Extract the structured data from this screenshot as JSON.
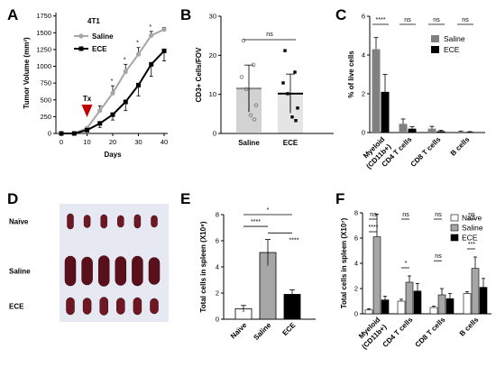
{
  "panels": {
    "A": "A",
    "B": "B",
    "C": "C",
    "D": "D",
    "E": "E",
    "F": "F"
  },
  "chart_data": [
    {
      "id": "A",
      "type": "line",
      "annotation_title": "4T1",
      "treatment_label": "Tx",
      "treatment_day": 10,
      "xlabel": "Days",
      "ylabel": "Tumor Volume (mm³)",
      "xlim": [
        0,
        40
      ],
      "ylim": [
        0,
        1800
      ],
      "xticks": [
        0,
        10,
        20,
        30,
        40
      ],
      "yticks": [
        0,
        250,
        500,
        750,
        1000,
        1250,
        1500,
        1750
      ],
      "series": [
        {
          "name": "Saline",
          "color": "#a6a6a6",
          "x": [
            0,
            5,
            10,
            15,
            20,
            25,
            30,
            35,
            40
          ],
          "y": [
            0,
            0,
            80,
            340,
            600,
            920,
            1180,
            1460,
            1550
          ],
          "err": [
            0,
            0,
            20,
            70,
            110,
            110,
            100,
            60,
            30
          ]
        },
        {
          "name": "ECE",
          "color": "#000000",
          "x": [
            0,
            5,
            10,
            15,
            20,
            25,
            30,
            35,
            40
          ],
          "y": [
            0,
            0,
            50,
            150,
            280,
            470,
            720,
            1030,
            1230
          ],
          "err": [
            0,
            0,
            20,
            60,
            80,
            130,
            160,
            180,
            150
          ]
        }
      ],
      "significance": [
        {
          "x": 20,
          "label": "*"
        },
        {
          "x": 25,
          "label": "*"
        },
        {
          "x": 30,
          "label": "*"
        },
        {
          "x": 35,
          "label": "*"
        }
      ]
    },
    {
      "id": "B",
      "type": "bar",
      "ylabel": "CD3+ Cells/FOV",
      "categories": [
        "Saline",
        "ECE"
      ],
      "values": [
        11.5,
        10.2
      ],
      "err": [
        6,
        5
      ],
      "colors": [
        "#a6a6a6",
        "#000000"
      ],
      "ylim": [
        0,
        30
      ],
      "yticks": [
        0,
        10,
        20,
        30
      ],
      "comparison": {
        "label": "ns"
      }
    },
    {
      "id": "C",
      "type": "bar",
      "ylabel": "% of live cells",
      "categories": [
        "Myeloid (CD11b+)",
        "CD4 T cells",
        "CD8 T cells",
        "B cells"
      ],
      "series": [
        {
          "name": "Saline",
          "color": "#808080",
          "values": [
            4.3,
            0.45,
            0.2,
            0.05
          ],
          "err": [
            0.6,
            0.25,
            0.12,
            0.03
          ]
        },
        {
          "name": "ECE",
          "color": "#000000",
          "values": [
            2.1,
            0.2,
            0.07,
            0.03
          ],
          "err": [
            0.9,
            0.1,
            0.05,
            0.02
          ]
        }
      ],
      "ylim": [
        0,
        6
      ],
      "yticks": [
        0,
        2,
        4,
        6
      ],
      "significance": [
        "****",
        "ns",
        "ns",
        "ns"
      ]
    },
    {
      "id": "E",
      "type": "bar",
      "ylabel": "Total cells in spleen (X10⁸)",
      "categories": [
        "Naïve",
        "Saline",
        "ECE"
      ],
      "values": [
        0.8,
        5.1,
        1.9
      ],
      "err": [
        0.25,
        1.0,
        0.35
      ],
      "colors": [
        "#ffffff",
        "#a6a6a6",
        "#000000"
      ],
      "ylim": [
        0,
        8
      ],
      "yticks": [
        0,
        2,
        4,
        6,
        8
      ],
      "comparisons": [
        {
          "from": 0,
          "to": 1,
          "label": "****"
        },
        {
          "from": 1,
          "to": 2,
          "label": "****"
        },
        {
          "from": 0,
          "to": 2,
          "label": "*"
        }
      ]
    },
    {
      "id": "F",
      "type": "bar",
      "ylabel": "Total cells in spleen (X10⁷)",
      "categories": [
        "Myeloid (CD11b+)",
        "CD4 T cells",
        "CD8 T cells",
        "B cells"
      ],
      "series": [
        {
          "name": "Naïve",
          "color": "#ffffff",
          "values": [
            0.3,
            1.0,
            0.5,
            1.6
          ],
          "err": [
            0.1,
            0.15,
            0.1,
            0.15
          ]
        },
        {
          "name": "Saline",
          "color": "#a6a6a6",
          "values": [
            6.1,
            2.5,
            1.5,
            3.6
          ],
          "err": [
            1.8,
            0.5,
            0.5,
            0.9
          ]
        },
        {
          "name": "ECE",
          "color": "#000000",
          "values": [
            1.1,
            1.8,
            1.2,
            2.1
          ],
          "err": [
            0.3,
            0.6,
            0.4,
            0.7
          ]
        }
      ],
      "ylim": [
        0,
        8
      ],
      "yticks": [
        0,
        2,
        4,
        6,
        8
      ],
      "significance": [
        {
          "top": "ns",
          "bottom": "****"
        },
        {
          "top": "ns",
          "bottom": "*"
        },
        {
          "top": "ns",
          "bottom": "ns"
        },
        {
          "top": "ns",
          "bottom": "***"
        }
      ]
    }
  ],
  "photo": {
    "id": "D",
    "rows": [
      "Naïve",
      "Saline",
      "ECE"
    ],
    "spleens_per_row": 6
  }
}
